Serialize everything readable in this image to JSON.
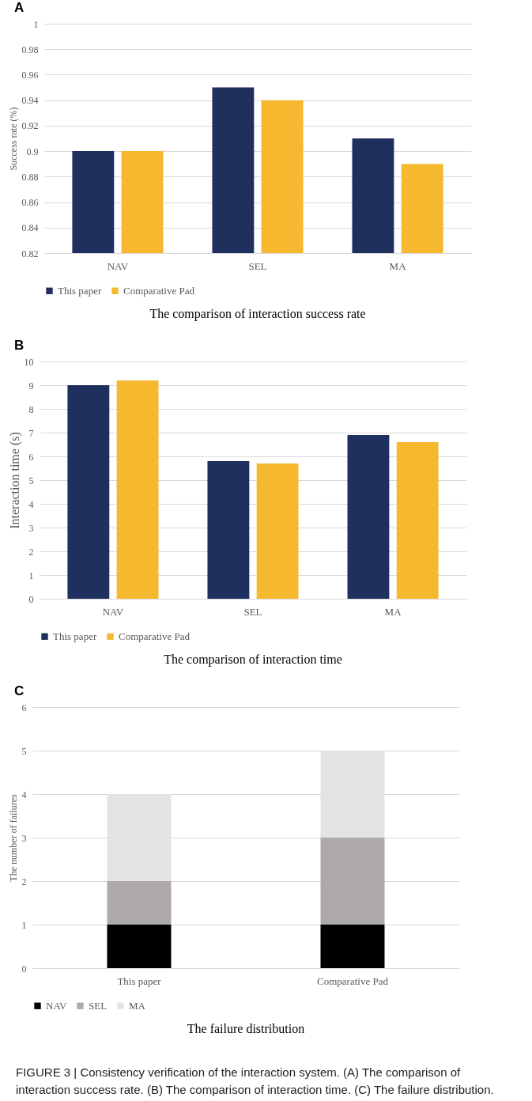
{
  "chart_data": [
    {
      "type": "bar",
      "title": "The comparison of interaction success rate",
      "ylabel": "Success rate (%)",
      "annotations": [
        "A"
      ],
      "categories": [
        "NAV",
        "SEL",
        "MA"
      ],
      "series": [
        {
          "name": "This paper",
          "color": "#1f2f5e",
          "values": [
            0.9,
            0.95,
            0.91
          ]
        },
        {
          "name": "Comparative Pad",
          "color": "#f5b82e",
          "values": [
            0.9,
            0.94,
            0.89
          ]
        }
      ],
      "ylim": [
        0.82,
        1
      ],
      "yticks": [
        0.82,
        0.84,
        0.86,
        0.88,
        0.9,
        0.92,
        0.94,
        0.96,
        0.98,
        1
      ],
      "grid": "y",
      "legend": "bottom"
    },
    {
      "type": "bar",
      "title": "The comparison of interaction time",
      "ylabel": "Interaction time (s)",
      "annotations": [
        "B"
      ],
      "categories": [
        "NAV",
        "SEL",
        "MA"
      ],
      "series": [
        {
          "name": "This paper",
          "color": "#1f2f5e",
          "values": [
            9.0,
            5.8,
            6.9
          ]
        },
        {
          "name": "Comparative Pad",
          "color": "#f5b82e",
          "values": [
            9.2,
            5.7,
            6.6
          ]
        }
      ],
      "ylim": [
        0,
        10
      ],
      "yticks": [
        0,
        1,
        2,
        3,
        4,
        5,
        6,
        7,
        8,
        9,
        10
      ],
      "grid": "y",
      "legend": "bottom"
    },
    {
      "type": "bar",
      "stacked": true,
      "title": "The failure distribution",
      "ylabel": "The number of failures",
      "annotations": [
        "C",
        "FIGURE 3 | Consistency verification of the interaction system. (A) The comparison of interaction success rate. (B) The comparison of interaction time. (C) The failure distribution."
      ],
      "categories": [
        "This paper",
        "Comparative Pad"
      ],
      "series": [
        {
          "name": "NAV",
          "color": "#000000",
          "values": [
            1,
            1
          ]
        },
        {
          "name": "SEL",
          "color": "#aeaaaa",
          "values": [
            1,
            2
          ]
        },
        {
          "name": "MA",
          "color": "#e3e3e3",
          "values": [
            2,
            2
          ]
        }
      ],
      "ylim": [
        0,
        6
      ],
      "yticks": [
        0,
        1,
        2,
        3,
        4,
        5,
        6
      ],
      "grid": "y",
      "legend": "bottom"
    }
  ]
}
